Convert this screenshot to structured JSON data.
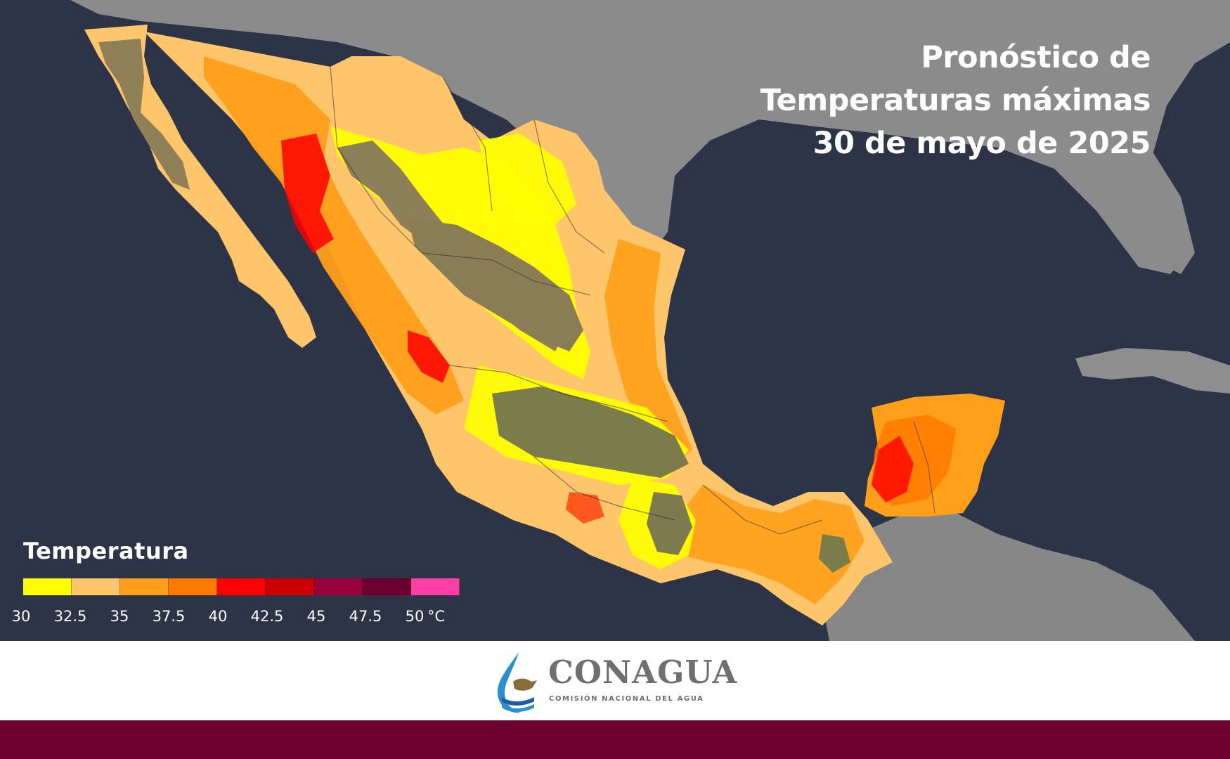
{
  "title": {
    "line1": "Pronóstico de",
    "line2": "Temperaturas máximas",
    "line3": "30 de mayo de 2025"
  },
  "legend": {
    "title": "Temperatura",
    "unit": "°C",
    "ticks": [
      "30",
      "32.5",
      "35",
      "37.5",
      "40",
      "42.5",
      "45",
      "47.5",
      "50"
    ],
    "colors": [
      "#ffff00",
      "#ffc56a",
      "#ff9f1a",
      "#ff7a00",
      "#ff0000",
      "#cc0000",
      "#99003a",
      "#6b0030",
      "#ff3fa6"
    ]
  },
  "logo": {
    "name": "CONAGUA",
    "subtitle": "COMISIÓN NACIONAL DEL AGUA"
  },
  "colors": {
    "ocean": "#2d3448",
    "land_outside": "#8a8a8a",
    "brand_band": "#6b0030",
    "highland": "#8d7f58"
  }
}
